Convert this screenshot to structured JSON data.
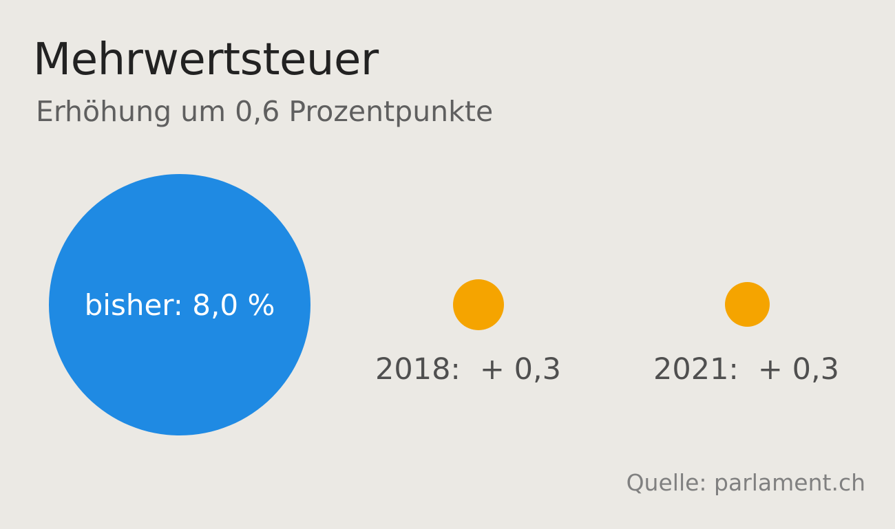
{
  "colors": {
    "background": "#ebe9e4",
    "current_rate": "#1f8ae3",
    "increase": "#f5a400"
  },
  "chart_data": {
    "type": "bubble",
    "title": "Mehrwertsteuer",
    "subtitle": "Erhöhung um 0,6 Prozentpunkte",
    "items": [
      {
        "category": "bisher",
        "value": 8.0,
        "unit": "%",
        "label": "bisher: 8,0 %",
        "color": "#1f8ae3"
      },
      {
        "category": "2018",
        "value": 0.3,
        "year_label": "2018:",
        "value_label": "+ 0,3",
        "color": "#f5a400"
      },
      {
        "category": "2021",
        "value": 0.3,
        "year_label": "2021:",
        "value_label": "+ 0,3",
        "color": "#f5a400"
      }
    ],
    "source": "Quelle: parlament.ch"
  }
}
